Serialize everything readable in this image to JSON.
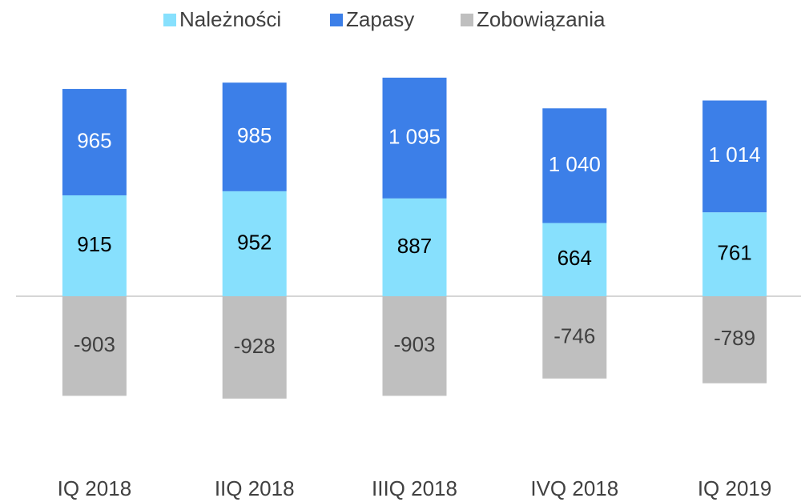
{
  "chart_data": {
    "type": "stacked_bar",
    "categories": [
      "IQ 2018",
      "IIQ 2018",
      "IIIQ 2018",
      "IVQ 2018",
      "IQ 2019"
    ],
    "series": [
      {
        "name": "Należności",
        "color": "#87e0fd",
        "values": [
          915,
          952,
          887,
          664,
          761
        ]
      },
      {
        "name": "Zapasy",
        "color": "#3c7fe8",
        "values": [
          965,
          985,
          1095,
          1040,
          1014
        ],
        "value_labels": [
          "965",
          "985",
          "1 095",
          "1 040",
          "1 014"
        ]
      },
      {
        "name": "Zobowiązania",
        "color": "#bfbfbf",
        "values": [
          -903,
          -928,
          -903,
          -746,
          -789
        ]
      }
    ],
    "legend": "top"
  }
}
